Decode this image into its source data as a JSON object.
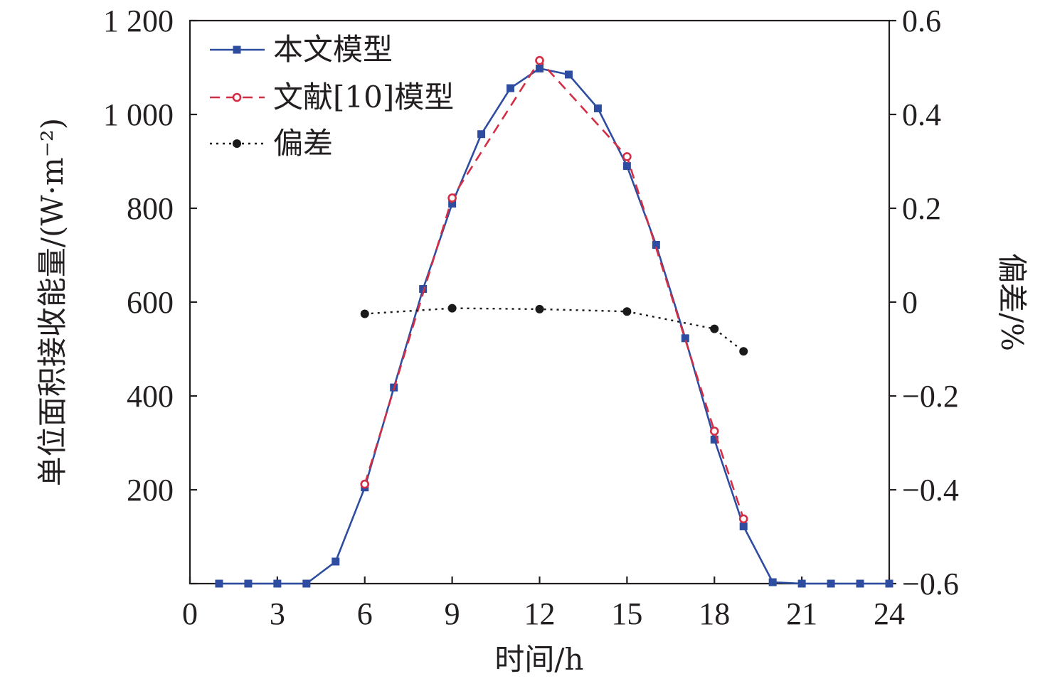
{
  "chart_data": {
    "type": "line",
    "x_axis": {
      "label": "时间/h",
      "range": [
        0,
        24
      ],
      "ticks": [
        0,
        3,
        6,
        9,
        12,
        15,
        18,
        21,
        24
      ],
      "tick_labels": [
        "0",
        "3",
        "6",
        "9",
        "12",
        "15",
        "18",
        "21",
        "24"
      ]
    },
    "y_axis_left": {
      "label": "单位面积接收能量/(W·m⁻²)",
      "range": [
        0,
        1200
      ],
      "ticks": [
        0,
        200,
        400,
        600,
        800,
        1000,
        1200
      ],
      "tick_labels": [
        "",
        "200",
        "400",
        "600",
        "800",
        "1 000",
        "1 200"
      ]
    },
    "y_axis_right": {
      "label": "偏差/%",
      "range": [
        -0.6,
        0.6
      ],
      "ticks": [
        -0.6,
        -0.4,
        -0.2,
        0,
        0.2,
        0.4,
        0.6
      ],
      "tick_labels": [
        "−0.6",
        "−0.4",
        "−0.2",
        "0",
        "0.2",
        "0.4",
        "0.6"
      ]
    },
    "legend_position": "top-left",
    "grid": false,
    "series": [
      {
        "name": "本文模型",
        "axis": "left",
        "style": "solid",
        "marker": "square",
        "color": "#2e4da0",
        "x": [
          1,
          2,
          3,
          4,
          5,
          6,
          7,
          8,
          9,
          10,
          11,
          12,
          13,
          14,
          15,
          16,
          17,
          18,
          19,
          20,
          21,
          22,
          23,
          24
        ],
        "values": [
          0,
          0,
          0,
          0,
          47,
          205,
          418,
          628,
          810,
          958,
          1056,
          1098,
          1085,
          1013,
          890,
          722,
          523,
          307,
          122,
          3,
          0,
          0,
          0,
          0
        ]
      },
      {
        "name": "文献[10]模型",
        "axis": "left",
        "style": "dashed",
        "marker": "open-circle",
        "color": "#d42e45",
        "x": [
          6,
          9,
          12,
          15,
          18,
          19
        ],
        "values": [
          212,
          822,
          1115,
          910,
          325,
          138
        ]
      },
      {
        "name": "偏差",
        "axis": "right",
        "style": "dotted",
        "marker": "filled-circle",
        "color": "#1a1a1a",
        "x": [
          6,
          9,
          12,
          15,
          18,
          19
        ],
        "values": [
          -0.025,
          -0.013,
          -0.015,
          -0.02,
          -0.057,
          -0.105
        ]
      }
    ]
  }
}
